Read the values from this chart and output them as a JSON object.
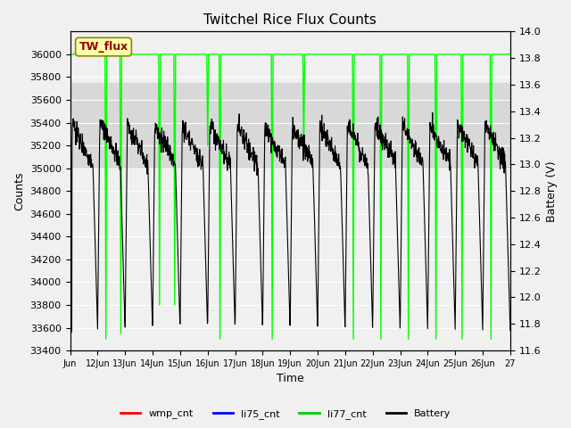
{
  "title": "Twitchel Rice Flux Counts",
  "xlabel": "Time",
  "ylabel_left": "Counts",
  "ylabel_right": "Battery (V)",
  "ylim_left": [
    33400,
    36200
  ],
  "ylim_right": [
    11.6,
    14.0
  ],
  "yticks_left": [
    33400,
    33600,
    33800,
    34000,
    34200,
    34400,
    34600,
    34800,
    35000,
    35200,
    35400,
    35600,
    35800,
    36000
  ],
  "yticks_right": [
    11.6,
    11.8,
    12.0,
    12.2,
    12.4,
    12.6,
    12.8,
    13.0,
    13.2,
    13.4,
    13.6,
    13.8,
    14.0
  ],
  "xtick_positions": [
    0,
    1,
    2,
    3,
    4,
    5,
    6,
    7,
    8,
    9,
    10,
    11,
    12,
    13,
    14,
    15,
    16
  ],
  "xtick_labels": [
    "Jun",
    "12Jun",
    "13Jun",
    "14Jun",
    "15Jun",
    "16Jun",
    "17Jun",
    "18Jun",
    "19Jun",
    "20Jun",
    "21Jun",
    "22Jun",
    "23Jun",
    "24Jun",
    "25Jun",
    "26Jun",
    "27"
  ],
  "fig_facecolor": "#f0f0f0",
  "axes_facecolor": "#f0f0f0",
  "shaded_band": [
    35000,
    35750
  ],
  "shaded_color": "#d8d8d8",
  "annotation_text": "TW_flux",
  "annotation_facecolor": "#ffffaa",
  "annotation_edgecolor": "#888800",
  "annotation_textcolor": "#990000",
  "legend_items": [
    "wmp_cnt",
    "li75_cnt",
    "li77_cnt",
    "Battery"
  ],
  "legend_colors": [
    "#ff0000",
    "#0000ff",
    "#00cc00",
    "#000000"
  ],
  "line_color_li77": "#00ff00",
  "line_color_battery": "#000000"
}
